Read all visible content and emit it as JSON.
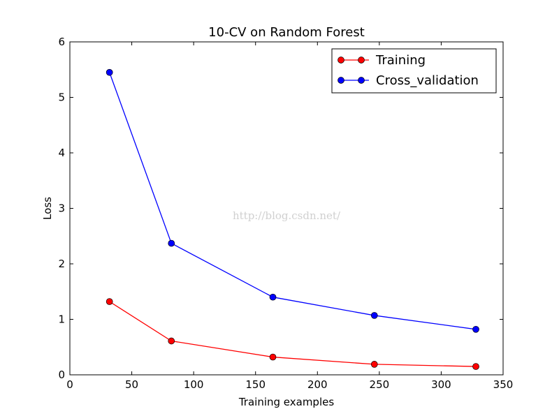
{
  "chart_data": {
    "type": "line",
    "title": "10-CV on Random Forest",
    "xlabel": "Training examples",
    "ylabel": "Loss",
    "xlim": [
      0,
      350
    ],
    "ylim": [
      0,
      6
    ],
    "xticks": [
      0,
      50,
      100,
      150,
      200,
      250,
      300,
      350
    ],
    "yticks": [
      0,
      1,
      2,
      3,
      4,
      5,
      6
    ],
    "grid": false,
    "legend_position": "top-right",
    "series": [
      {
        "name": "Training",
        "color": "#ff0000",
        "marker": "circle",
        "points": [
          {
            "x": 32,
            "y": 1.32
          },
          {
            "x": 82,
            "y": 0.61
          },
          {
            "x": 164,
            "y": 0.32
          },
          {
            "x": 246,
            "y": 0.19
          },
          {
            "x": 328,
            "y": 0.15
          }
        ]
      },
      {
        "name": "Cross_validation",
        "color": "#0000ff",
        "marker": "circle",
        "points": [
          {
            "x": 32,
            "y": 5.45
          },
          {
            "x": 82,
            "y": 2.37
          },
          {
            "x": 164,
            "y": 1.4
          },
          {
            "x": 246,
            "y": 1.07
          },
          {
            "x": 328,
            "y": 0.82
          }
        ]
      }
    ],
    "watermark": "http://blog.csdn.net/"
  }
}
